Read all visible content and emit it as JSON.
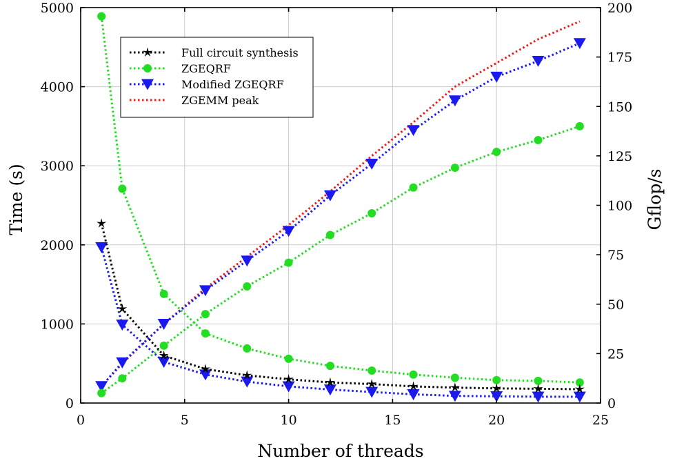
{
  "chart_data": {
    "type": "line",
    "title": "",
    "xlabel": "Number of threads",
    "ylabel_left": "Time (s)",
    "ylabel_right": "Gflop/s",
    "xlim": [
      0,
      25
    ],
    "ylim_left": [
      0,
      5000
    ],
    "ylim_right": [
      0,
      200
    ],
    "xticks": [
      0,
      5,
      10,
      15,
      20,
      25
    ],
    "yticks_left": [
      0,
      1000,
      2000,
      3000,
      4000,
      5000
    ],
    "yticks_right": [
      0,
      25,
      50,
      75,
      100,
      125,
      150,
      175,
      200
    ],
    "grid": true,
    "legend_position": "top-left",
    "series": [
      {
        "name": "Full circuit synthesis",
        "axis": "left",
        "color": "#000000",
        "marker": "star",
        "x": [
          1,
          2,
          4,
          6,
          8,
          10,
          12,
          14,
          16,
          18,
          20,
          22,
          24
        ],
        "y": [
          2270,
          1190,
          600,
          430,
          350,
          300,
          260,
          240,
          210,
          195,
          185,
          180,
          175
        ]
      },
      {
        "name": "ZGEQRF",
        "axis": "left",
        "color": "#22dd22",
        "marker": "circle",
        "x": [
          1,
          2,
          4,
          6,
          8,
          10,
          12,
          14,
          16,
          18,
          20,
          22,
          24
        ],
        "y": [
          4890,
          2710,
          1380,
          880,
          690,
          560,
          470,
          410,
          360,
          320,
          290,
          280,
          260
        ]
      },
      {
        "name": "ZGEQRF",
        "axis": "right",
        "color": "#22dd22",
        "marker": "circle",
        "x": [
          1,
          2,
          4,
          6,
          8,
          10,
          12,
          14,
          16,
          18,
          20,
          22,
          24
        ],
        "y": [
          5,
          12.5,
          29,
          45,
          59,
          71,
          85,
          96,
          109,
          119,
          127,
          133,
          140
        ]
      },
      {
        "name": "Modified ZGEQRF",
        "axis": "left",
        "color": "#1a1aee",
        "marker": "triangle-down",
        "x": [
          1,
          2,
          4,
          6,
          8,
          10,
          12,
          14,
          16,
          18,
          20,
          22,
          24
        ],
        "y": [
          1970,
          990,
          520,
          360,
          270,
          210,
          170,
          140,
          110,
          90,
          85,
          80,
          80
        ]
      },
      {
        "name": "Modified ZGEQRF",
        "axis": "right",
        "color": "#1a1aee",
        "marker": "triangle-down",
        "x": [
          1,
          2,
          4,
          6,
          8,
          10,
          12,
          14,
          16,
          18,
          20,
          22,
          24
        ],
        "y": [
          8.5,
          20.5,
          40,
          57,
          72,
          87,
          105,
          121,
          138,
          153,
          165,
          173,
          182
        ]
      },
      {
        "name": "ZGEMM peak",
        "axis": "right",
        "color": "#ee1a1a",
        "marker": "none",
        "x": [
          1,
          2,
          4,
          6,
          8,
          10,
          12,
          14,
          16,
          18,
          20,
          22,
          24
        ],
        "y": [
          8.5,
          20,
          40,
          58,
          74,
          90,
          107,
          125,
          142,
          160,
          172,
          184,
          193
        ]
      }
    ]
  }
}
